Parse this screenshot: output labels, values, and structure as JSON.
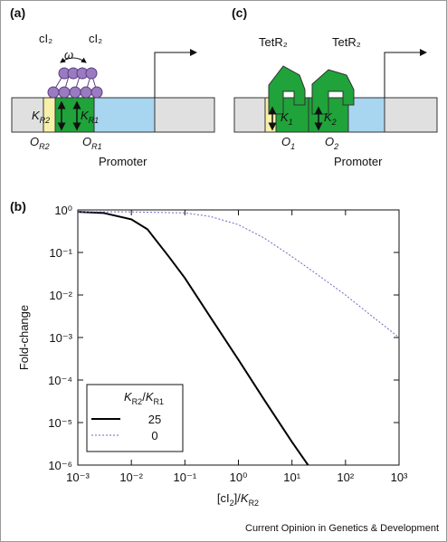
{
  "panels": {
    "a": {
      "label": "(a)",
      "dimer_left": "cI₂",
      "dimer_right": "cI₂",
      "omega": "ω",
      "k_left": {
        "symbol": "K",
        "sub": "R2"
      },
      "k_right": {
        "symbol": "K",
        "sub": "R1"
      },
      "o_left": {
        "symbol": "O",
        "sub": "R2"
      },
      "o_right": {
        "symbol": "O",
        "sub": "R1"
      },
      "promoter": "Promoter"
    },
    "c": {
      "label": "(c)",
      "repressor_left": "TetR₂",
      "repressor_right": "TetR₂",
      "k_left": {
        "symbol": "K",
        "sub": "1"
      },
      "k_right": {
        "symbol": "K",
        "sub": "2"
      },
      "o_left": {
        "symbol": "O",
        "sub": "1"
      },
      "o_right": {
        "symbol": "O",
        "sub": "2"
      },
      "promoter": "Promoter"
    },
    "footer": "Current Opinion in Genetics & Development"
  },
  "chart_data": {
    "type": "line",
    "panel_label": "(b)",
    "y_label": "Fold-change",
    "x_label": {
      "open": "[cI",
      "open_sub": "2",
      "close": "]/",
      "symbol": "K",
      "sub": "R2"
    },
    "legend_title": {
      "num": "K",
      "num_sub": "R2",
      "slash": "/",
      "den": "K",
      "den_sub": "R1"
    },
    "x_scale": "log",
    "y_scale": "log",
    "xlim": [
      0.001,
      1000
    ],
    "ylim": [
      1e-06,
      1
    ],
    "xticks": [
      {
        "value": 0.001,
        "label": "10⁻³"
      },
      {
        "value": 0.01,
        "label": "10⁻²"
      },
      {
        "value": 0.1,
        "label": "10⁻¹"
      },
      {
        "value": 1,
        "label": "10⁰"
      },
      {
        "value": 10,
        "label": "10¹"
      },
      {
        "value": 100,
        "label": "10²"
      },
      {
        "value": 1000,
        "label": "10³"
      }
    ],
    "yticks": [
      {
        "value": 1e-06,
        "label": "10⁻⁶"
      },
      {
        "value": 1e-05,
        "label": "10⁻⁵"
      },
      {
        "value": 0.0001,
        "label": "10⁻⁴"
      },
      {
        "value": 0.001,
        "label": "10⁻³"
      },
      {
        "value": 0.01,
        "label": "10⁻²"
      },
      {
        "value": 0.1,
        "label": "10⁻¹"
      },
      {
        "value": 1,
        "label": "10⁰"
      }
    ],
    "series": [
      {
        "name": "25",
        "color": "#000000",
        "dash": "solid",
        "x": [
          0.001,
          0.003,
          0.01,
          0.02,
          0.05,
          0.1,
          0.3,
          1,
          3,
          10,
          20
        ],
        "values": [
          0.9,
          0.85,
          0.6,
          0.35,
          0.08,
          0.025,
          0.003,
          0.0003,
          3.5e-05,
          3.5e-06,
          1e-06
        ]
      },
      {
        "name": "0",
        "color": "#6a6ac8",
        "dash": "dotted",
        "x": [
          0.001,
          0.01,
          0.1,
          0.3,
          1,
          3,
          10,
          30,
          100,
          300,
          1000
        ],
        "values": [
          0.9,
          0.9,
          0.85,
          0.7,
          0.45,
          0.22,
          0.08,
          0.03,
          0.01,
          0.0033,
          0.001
        ]
      }
    ]
  }
}
